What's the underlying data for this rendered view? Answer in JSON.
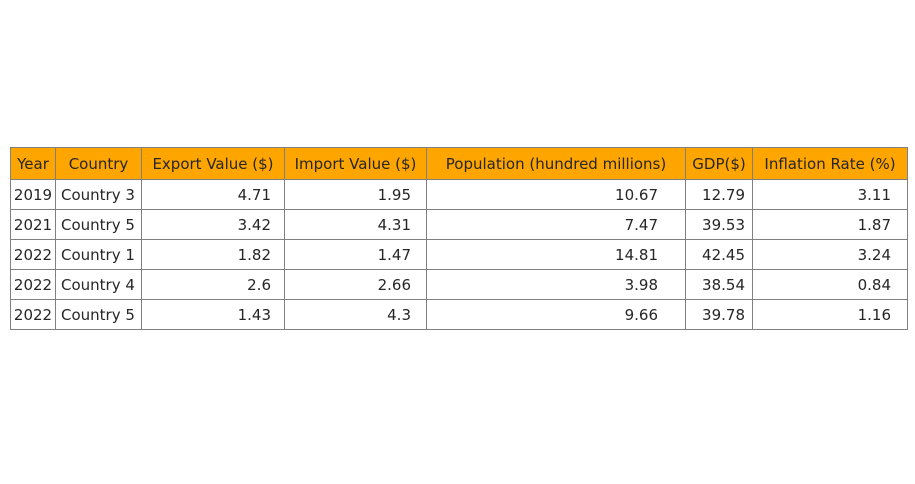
{
  "chart_data": {
    "type": "table",
    "columns": [
      "Year",
      "Country",
      "Export Value ($)",
      "Import Value ($)",
      "Population (hundred millions)",
      "GDP($)",
      "Inflation Rate (%)"
    ],
    "rows": [
      [
        "2019",
        "Country 3",
        "4.71",
        "1.95",
        "10.67",
        "12.79",
        "3.11"
      ],
      [
        "2021",
        "Country 5",
        "3.42",
        "4.31",
        "7.47",
        "39.53",
        "1.87"
      ],
      [
        "2022",
        "Country 1",
        "1.82",
        "1.47",
        "14.81",
        "42.45",
        "3.24"
      ],
      [
        "2022",
        "Country 4",
        "2.6",
        "2.66",
        "3.98",
        "38.54",
        "0.84"
      ],
      [
        "2022",
        "Country 5",
        "1.43",
        "4.3",
        "9.66",
        "39.78",
        "1.16"
      ]
    ],
    "header_color": "#ffa500",
    "border_color": "#808080"
  }
}
